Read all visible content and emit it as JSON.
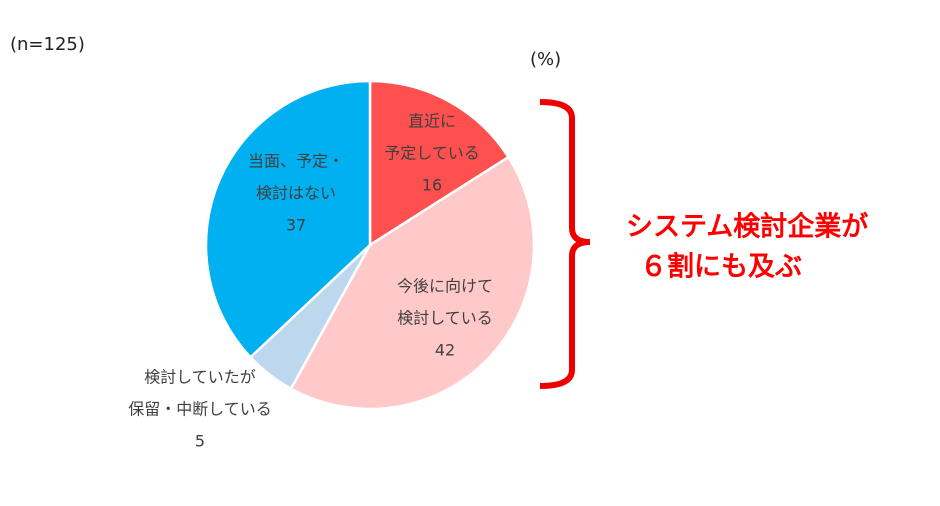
{
  "chart_data": {
    "type": "pie",
    "sample_note": "(n=125)",
    "unit_note": "(%)",
    "categories": [
      [
        "直近に",
        "予定している"
      ],
      [
        "今後に向けて",
        "検討している"
      ],
      [
        "検討していたが",
        "保留・中断している"
      ],
      [
        "当面、予定・",
        "検討はない"
      ]
    ],
    "values": [
      16,
      42,
      5,
      37
    ],
    "colors": [
      "#ff5050",
      "#ffc9c9",
      "#bdd7ee",
      "#00b0f0"
    ],
    "annotation": [
      "システム検討企業が",
      "６割にも及ぶ"
    ],
    "annotation_color": "#ff0000"
  }
}
